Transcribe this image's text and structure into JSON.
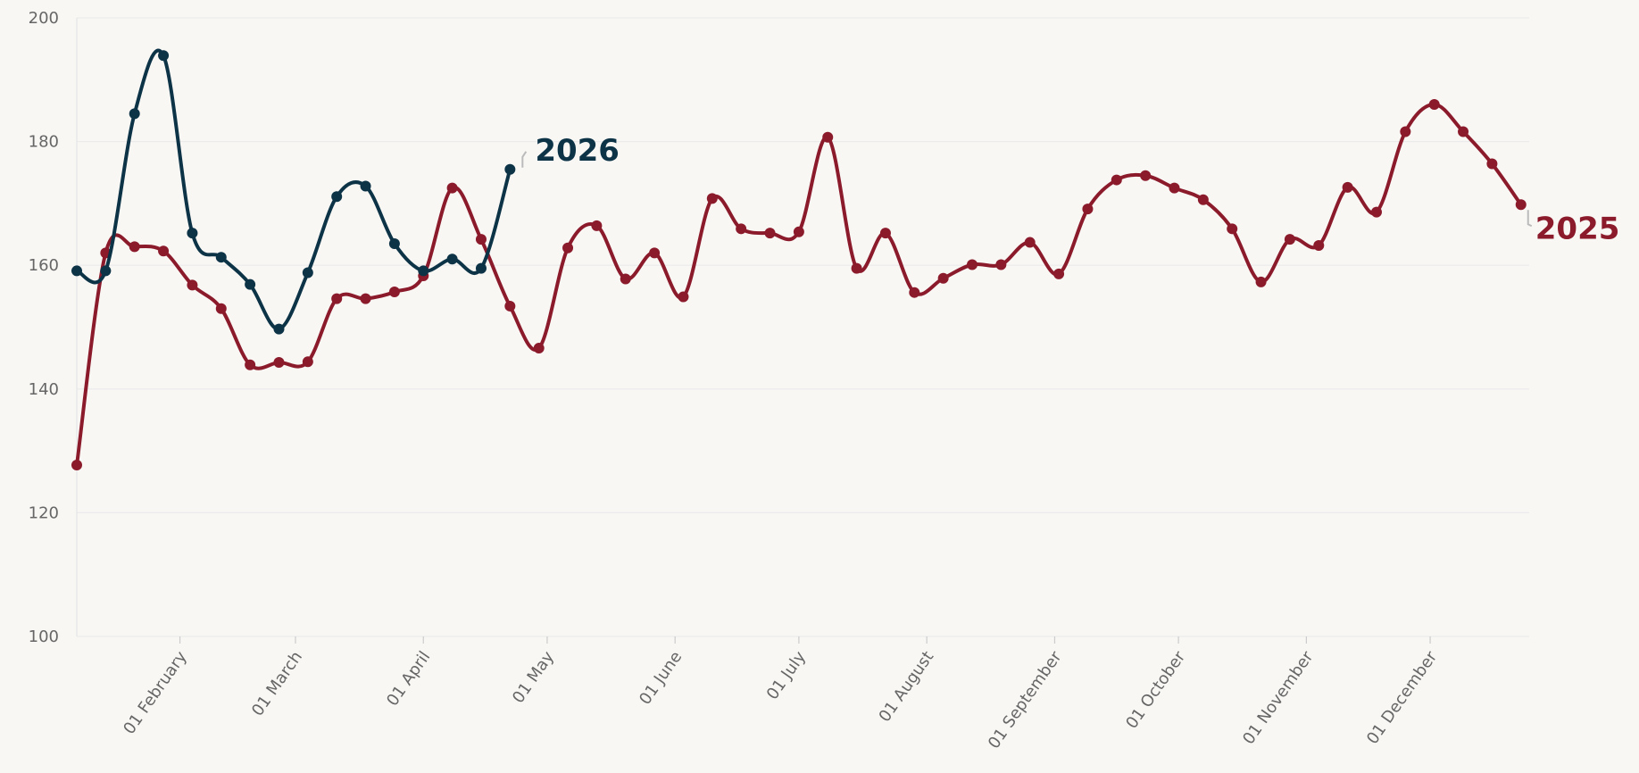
{
  "chart_data": {
    "type": "line",
    "series": [
      {
        "name": "2025",
        "color": "#8b1a2b",
        "x": [
          7,
          14,
          21,
          28,
          35,
          42,
          49,
          56,
          63,
          70,
          77,
          84,
          91,
          98,
          105,
          112,
          119,
          126,
          133,
          140,
          147,
          154,
          161,
          168,
          175,
          182,
          189,
          196,
          203,
          210,
          217,
          224,
          231,
          238,
          245,
          252,
          259,
          266,
          273,
          280,
          287,
          294,
          301,
          308,
          315,
          322,
          329,
          336,
          343,
          350,
          357
        ],
        "values": [
          127.7,
          162,
          163,
          162.3,
          156.8,
          153,
          143.9,
          144.3,
          144.4,
          154.6,
          154.6,
          155.7,
          158.3,
          172.5,
          164.2,
          153.4,
          146.6,
          162.8,
          166.4,
          157.8,
          162,
          154.9,
          170.8,
          165.9,
          165.2,
          165.4,
          180.7,
          159.5,
          165.2,
          155.6,
          157.9,
          160.1,
          160.1,
          163.7,
          158.6,
          169.1,
          173.8,
          174.5,
          172.5,
          170.6,
          165.9,
          157.3,
          164.2,
          163.2,
          172.6,
          168.6,
          181.6,
          186,
          181.6,
          176.4,
          169.8
        ]
      },
      {
        "name": "2026",
        "color": "#0d3347",
        "x": [
          7,
          14,
          21,
          28,
          35,
          42,
          49,
          56,
          63,
          70,
          77,
          84,
          91,
          98,
          105,
          112
        ],
        "values": [
          159.1,
          159.1,
          184.5,
          193.9,
          165.2,
          161.3,
          156.9,
          149.7,
          158.8,
          171.1,
          172.8,
          163.5,
          159.1,
          161,
          159.5,
          175.5
        ]
      }
    ],
    "xlim": [
      7,
      359
    ],
    "xticks": [
      {
        "value": 32,
        "label": "01 February"
      },
      {
        "value": 60,
        "label": "01 March"
      },
      {
        "value": 91,
        "label": "01 April"
      },
      {
        "value": 121,
        "label": "01 May"
      },
      {
        "value": 152,
        "label": "01 June"
      },
      {
        "value": 182,
        "label": "01 July"
      },
      {
        "value": 213,
        "label": "01 August"
      },
      {
        "value": 244,
        "label": "01 September"
      },
      {
        "value": 274,
        "label": "01 October"
      },
      {
        "value": 305,
        "label": "01 November"
      },
      {
        "value": 335,
        "label": "01 December"
      }
    ],
    "ylim": [
      100,
      200
    ],
    "yticks": [
      100,
      120,
      140,
      160,
      180,
      200
    ],
    "grid": true
  }
}
